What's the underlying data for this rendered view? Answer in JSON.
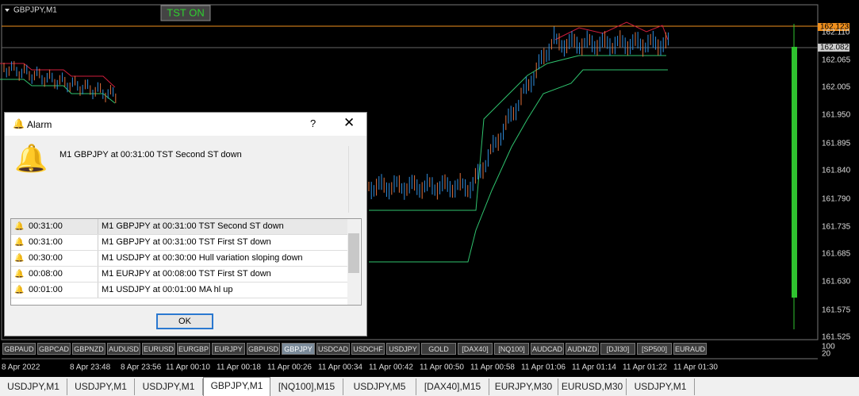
{
  "chart_window": {
    "title": "GBPJPY,M1",
    "indicator_label": "TST ON",
    "alert_price": "162.123",
    "current_price": "162.082",
    "price_labels": [
      "162.110",
      "162.065",
      "162.005",
      "161.950",
      "161.895",
      "161.840",
      "161.790",
      "161.735",
      "161.685",
      "161.630",
      "161.575",
      "161.525"
    ],
    "sub_scale": [
      "100",
      "20"
    ],
    "time_labels": [
      "8 Apr 2022",
      "8 Apr 23:48",
      "8 Apr 23:56",
      "11 Apr 00:10",
      "11 Apr 00:18",
      "11 Apr 00:26",
      "11 Apr 00:34",
      "11 Apr 00:42",
      "11 Apr 00:50",
      "11 Apr 00:58",
      "11 Apr 01:06",
      "11 Apr 01:14",
      "11 Apr 01:22",
      "11 Apr 01:30"
    ],
    "symbol_buttons": [
      "GBPAUD",
      "GBPCAD",
      "GBPNZD",
      "AUDUSD",
      "EURUSD",
      "EURGBP",
      "EURJPY",
      "GBPUSD",
      "GBPJPY",
      "USDCAD",
      "USDCHF",
      "USDJPY",
      "GOLD",
      "[DAX40]",
      "[NQ100]",
      "AUDCAD",
      "AUDNZD",
      "[DJI30]",
      "[SP500]",
      "EURAUD"
    ],
    "active_symbol": 8
  },
  "tabs": {
    "items": [
      "USDJPY,M1",
      "USDJPY,M1",
      "USDJPY,M1",
      "GBPJPY,M1",
      "[NQ100],M15",
      "USDJPY,M5",
      "[DAX40],M15",
      "EURJPY,M30",
      "EURUSD,M30",
      "USDJPY,M1"
    ],
    "active": 3
  },
  "alarm_dialog": {
    "title": "Alarm",
    "help": "?",
    "message": "M1 GBPJPY at 00:31:00 TST Second ST down",
    "rows": [
      [
        "00:31:00",
        "M1 GBPJPY at 00:31:00 TST Second ST down"
      ],
      [
        "00:31:00",
        "M1 GBPJPY at 00:31:00 TST First ST down"
      ],
      [
        "00:30:00",
        "M1 USDJPY at 00:30:00 Hull variation  sloping down"
      ],
      [
        "00:08:00",
        "M1 EURJPY at 00:08:00 TST First ST down"
      ],
      [
        "00:01:00",
        "M1 USDJPY at 00:01:00 MA hl   up"
      ]
    ],
    "ok": "OK"
  }
}
